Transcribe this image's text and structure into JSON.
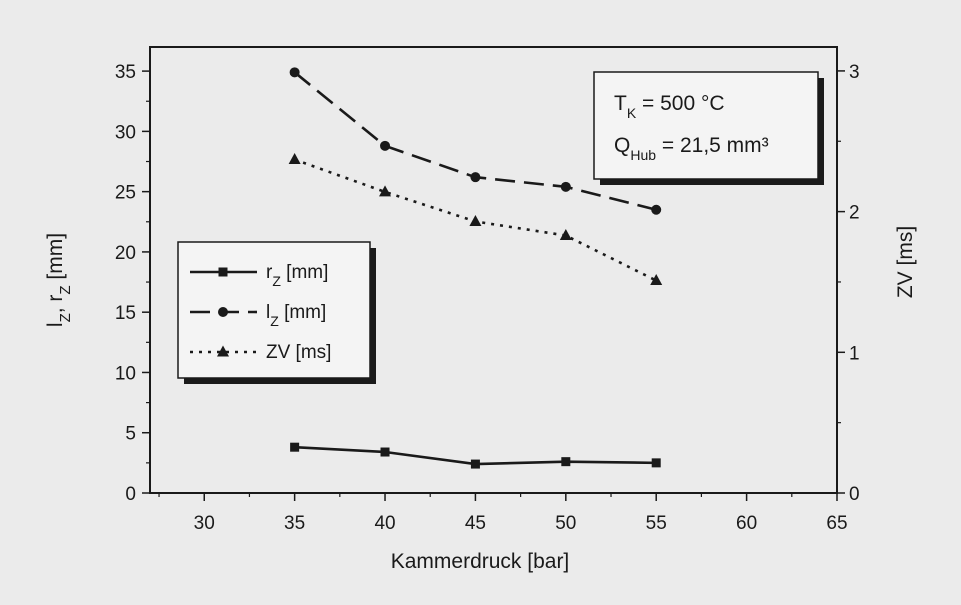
{
  "chart_data": {
    "type": "line",
    "title": "",
    "xlabel": "Kammerdruck [bar]",
    "ylabel_left": {
      "main": "l",
      "sub1": "Z",
      "mid": ", r",
      "sub2": "Z",
      "unit": " [mm]"
    },
    "ylabel_right": "ZV [ms]",
    "xlim": [
      27,
      65
    ],
    "ylim_left": [
      0,
      37
    ],
    "ylim_right": [
      0,
      3.17
    ],
    "x_ticks": [
      30,
      35,
      40,
      45,
      50,
      55,
      60,
      65
    ],
    "y_left_ticks": [
      0,
      5,
      10,
      15,
      20,
      25,
      30,
      35
    ],
    "y_right_ticks": [
      0,
      1,
      2,
      3
    ],
    "grid": false,
    "legend_placement": "middle-left",
    "series": [
      {
        "key": "rz",
        "name_main": "r",
        "name_sub": "Z",
        "name_unit": " [mm]",
        "axis": "left",
        "marker": "square",
        "dash": "solid",
        "x": [
          35,
          40,
          45,
          50,
          55
        ],
        "values": [
          3.8,
          3.4,
          2.4,
          2.6,
          2.5
        ]
      },
      {
        "key": "lz",
        "name_main": "l",
        "name_sub": "Z",
        "name_unit": " [mm]",
        "axis": "left",
        "marker": "circle",
        "dash": "long-dash",
        "x": [
          35,
          40,
          45,
          50,
          55
        ],
        "values": [
          34.9,
          28.8,
          26.2,
          25.4,
          23.5
        ]
      },
      {
        "key": "zv",
        "name_main": "ZV",
        "name_sub": "",
        "name_unit": " [ms]",
        "axis": "right",
        "marker": "triangle",
        "dash": "dotted",
        "x": [
          35,
          40,
          45,
          50,
          55
        ],
        "values": [
          2.37,
          2.14,
          1.93,
          1.83,
          1.51
        ]
      }
    ],
    "annotation": {
      "line1_main": "T",
      "line1_sub": "K",
      "line1_rest": " = 500 °C",
      "line2_main": "Q",
      "line2_sub": "Hub",
      "line2_rest": " = 21,5 mm³"
    },
    "colors": {
      "ink": "#1a1a1a",
      "background": "#ebebeb",
      "box": "#f4f4f4"
    }
  }
}
